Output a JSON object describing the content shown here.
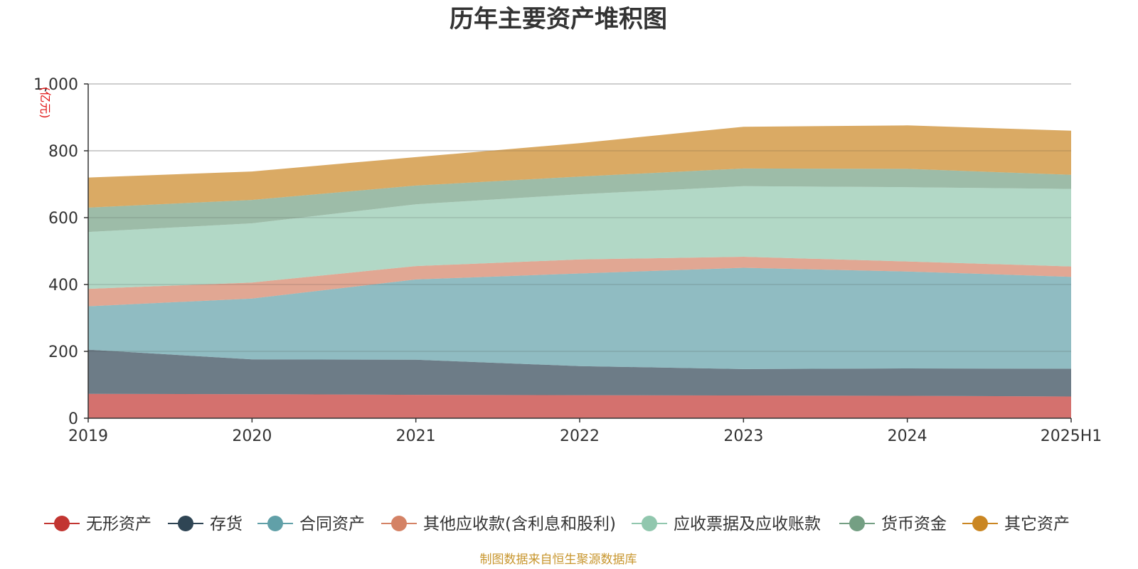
{
  "chart_data": {
    "type": "area",
    "stacked": true,
    "title": "历年主要资产堆积图",
    "unit_label": "(亿元)",
    "categories": [
      "2019",
      "2020",
      "2021",
      "2022",
      "2023",
      "2024",
      "2025H1"
    ],
    "y_ticks": [
      "0",
      "200",
      "400",
      "600",
      "800",
      "1,000"
    ],
    "ylim": [
      0,
      1000
    ],
    "grid": true,
    "legend_position": "bottom",
    "series": [
      {
        "name": "无形资产",
        "color": "#c23531",
        "values": [
          73,
          72,
          70,
          69,
          68,
          67,
          65
        ]
      },
      {
        "name": "存货",
        "color": "#2f4554",
        "values": [
          132,
          104,
          105,
          87,
          79,
          82,
          83
        ]
      },
      {
        "name": "合同资产",
        "color": "#61a0a8",
        "values": [
          130,
          182,
          240,
          277,
          303,
          290,
          275
        ]
      },
      {
        "name": "其他应收款(含利息和股利)",
        "color": "#d48265",
        "values": [
          52,
          48,
          40,
          42,
          33,
          30,
          31
        ]
      },
      {
        "name": "应收票据及应收账款",
        "color": "#91c7ae",
        "values": [
          170,
          177,
          185,
          195,
          211,
          222,
          232
        ]
      },
      {
        "name": "货币资金",
        "color": "#749f83",
        "values": [
          73,
          70,
          56,
          53,
          53,
          55,
          42
        ]
      },
      {
        "name": "其它资产",
        "color": "#ca8622",
        "values": [
          90,
          85,
          85,
          100,
          125,
          130,
          132
        ]
      }
    ],
    "source": "制图数据来自恒生聚源数据库"
  }
}
